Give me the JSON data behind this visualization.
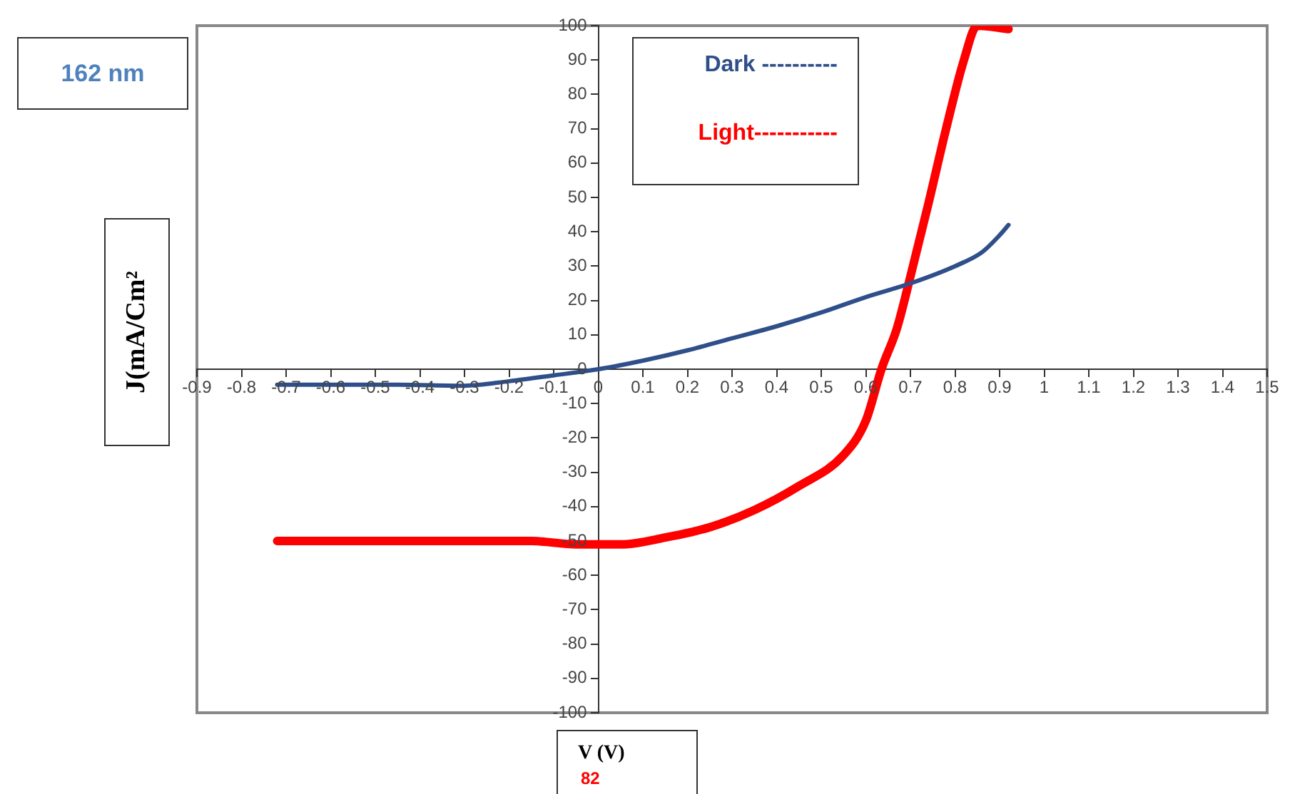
{
  "chart_data": {
    "type": "line",
    "xlabel": "V (V)",
    "ylabel": "J(mA/Cm²",
    "annotations": [
      "162 nm",
      "82"
    ],
    "series": [
      {
        "name": "Dark ----------",
        "color": "#2f4f8a",
        "x": [
          -0.72,
          -0.45,
          -0.3,
          -0.2,
          -0.1,
          0,
          0.1,
          0.2,
          0.3,
          0.4,
          0.5,
          0.6,
          0.7,
          0.8,
          0.86,
          0.9,
          0.92
        ],
        "values": [
          -4.5,
          -4.5,
          -4.8,
          -3.5,
          -1.8,
          0,
          2.5,
          5.5,
          9,
          12.5,
          16.5,
          21,
          25,
          30,
          34,
          39,
          42
        ]
      },
      {
        "name": "Light-----------",
        "color": "#ff0000",
        "x": [
          -0.72,
          -0.3,
          -0.15,
          -0.05,
          0.05,
          0.15,
          0.25,
          0.35,
          0.45,
          0.55,
          0.6,
          0.635,
          0.67,
          0.7,
          0.74,
          0.78,
          0.82,
          0.85,
          0.92
        ],
        "values": [
          -50,
          -50,
          -50,
          -51,
          -51,
          -49,
          -46,
          -41,
          -34,
          -25,
          -15,
          0,
          12,
          27,
          48,
          70,
          90,
          100,
          99
        ]
      }
    ],
    "xlim": [
      -0.9,
      1.5
    ],
    "xticks": [
      -0.9,
      -0.8,
      -0.7,
      -0.6,
      -0.5,
      -0.4,
      -0.3,
      -0.2,
      -0.1,
      0,
      0.1,
      0.2,
      0.3,
      0.4,
      0.5,
      0.6,
      0.7,
      0.8,
      0.9,
      1,
      1.1,
      1.2,
      1.3,
      1.4,
      1.5
    ],
    "ylim": [
      -100,
      100
    ],
    "yticks": [
      -100,
      -90,
      -80,
      -70,
      -60,
      -50,
      -40,
      -30,
      -20,
      -10,
      0,
      10,
      20,
      30,
      40,
      50,
      60,
      70,
      80,
      90,
      100
    ],
    "grid": false,
    "legend": "top",
    "marker": "none",
    "line_style": "solid"
  }
}
